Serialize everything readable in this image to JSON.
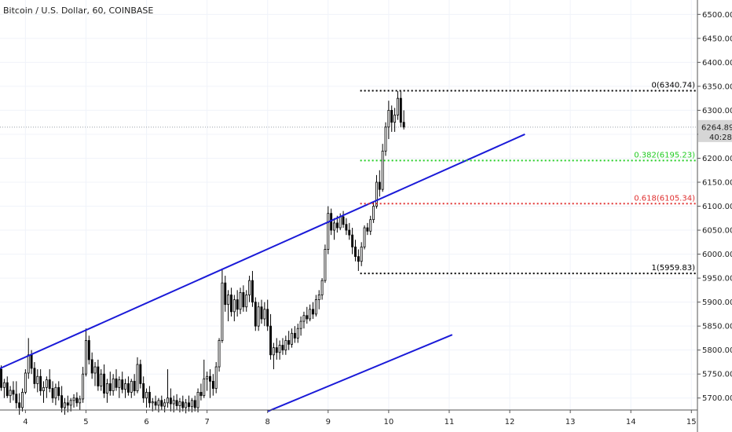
{
  "header": {
    "title": "Bitcoin / U.S. Dollar, 60, COINBASE"
  },
  "price_axis": {
    "labels": [
      "6500.00",
      "6450.00",
      "6400.00",
      "6350.00",
      "6300.00",
      "6250.00",
      "6200.00",
      "6150.00",
      "6100.00",
      "6050.00",
      "6000.00",
      "5950.00",
      "5900.00",
      "5850.00",
      "5800.00",
      "5750.00",
      "5700.00"
    ],
    "last_price": "6264.89",
    "countdown": "40:28",
    "last_price_bg": "#d6d6d6"
  },
  "time_axis": {
    "labels": [
      "4",
      "5",
      "6",
      "7",
      "8",
      "9",
      "10",
      "11",
      "12",
      "13",
      "14",
      "15"
    ]
  },
  "fib_levels": [
    {
      "label": "0(6340.74)",
      "value": 6340.74,
      "color": "#000000"
    },
    {
      "label": "0.382(6195.23)",
      "value": 6195.23,
      "color": "#22cc22"
    },
    {
      "label": "0.618(6105.34)",
      "value": 6105.34,
      "color": "#e03030"
    },
    {
      "label": "1(5959.83)",
      "value": 5959.83,
      "color": "#000000"
    }
  ],
  "chart_data": {
    "type": "candlestick",
    "title": "Bitcoin / U.S. Dollar, 60, COINBASE",
    "x_ticks": [
      4,
      5,
      6,
      7,
      8,
      9,
      10,
      11,
      12,
      13,
      14,
      15
    ],
    "y_ticks": [
      5700,
      5750,
      5800,
      5850,
      5900,
      5950,
      6000,
      6050,
      6100,
      6150,
      6200,
      6250,
      6300,
      6350,
      6400,
      6450,
      6500
    ],
    "ylim": [
      5675,
      6530
    ],
    "xlim": [
      3.58,
      15.1
    ],
    "last_price": 6264.89,
    "trendlines": [
      {
        "color": "#1a1ad8",
        "points": [
          [
            3.55,
            5760
          ],
          [
            12.25,
            6250
          ]
        ]
      },
      {
        "color": "#1a1ad8",
        "points": [
          [
            8.0,
            5672
          ],
          [
            11.05,
            5832
          ]
        ]
      }
    ],
    "fibonacci": [
      {
        "ratio": 0,
        "value": 6340.74
      },
      {
        "ratio": 0.382,
        "value": 6195.23
      },
      {
        "ratio": 0.618,
        "value": 6105.34
      },
      {
        "ratio": 1,
        "value": 5959.83
      }
    ],
    "fib_range": [
      9.53,
      15.1
    ],
    "candles": [
      [
        3.6,
        5760,
        5768,
        5715,
        5722
      ],
      [
        3.65,
        5722,
        5740,
        5700,
        5732
      ],
      [
        3.7,
        5732,
        5745,
        5700,
        5705
      ],
      [
        3.75,
        5705,
        5725,
        5690,
        5716
      ],
      [
        3.8,
        5716,
        5735,
        5695,
        5708
      ],
      [
        3.85,
        5708,
        5735,
        5678,
        5690
      ],
      [
        3.9,
        5690,
        5710,
        5665,
        5680
      ],
      [
        3.95,
        5680,
        5720,
        5672,
        5712
      ],
      [
        4.0,
        5712,
        5760,
        5708,
        5752
      ],
      [
        4.05,
        5752,
        5825,
        5740,
        5790
      ],
      [
        4.1,
        5790,
        5800,
        5750,
        5762
      ],
      [
        4.15,
        5762,
        5775,
        5720,
        5730
      ],
      [
        4.2,
        5730,
        5760,
        5712,
        5745
      ],
      [
        4.25,
        5745,
        5760,
        5705,
        5715
      ],
      [
        4.3,
        5715,
        5735,
        5690,
        5722
      ],
      [
        4.35,
        5722,
        5745,
        5700,
        5738
      ],
      [
        4.4,
        5738,
        5760,
        5712,
        5720
      ],
      [
        4.45,
        5720,
        5735,
        5690,
        5700
      ],
      [
        4.5,
        5700,
        5730,
        5685,
        5722
      ],
      [
        4.55,
        5722,
        5735,
        5695,
        5705
      ],
      [
        4.6,
        5705,
        5725,
        5670,
        5680
      ],
      [
        4.65,
        5680,
        5700,
        5665,
        5690
      ],
      [
        4.7,
        5690,
        5705,
        5670,
        5685
      ],
      [
        4.75,
        5685,
        5700,
        5672,
        5695
      ],
      [
        4.8,
        5695,
        5708,
        5680,
        5700
      ],
      [
        4.85,
        5700,
        5712,
        5682,
        5690
      ],
      [
        4.9,
        5690,
        5705,
        5675,
        5698
      ],
      [
        4.95,
        5698,
        5765,
        5690,
        5750
      ],
      [
        5.0,
        5750,
        5845,
        5745,
        5820
      ],
      [
        5.05,
        5820,
        5830,
        5770,
        5780
      ],
      [
        5.1,
        5780,
        5795,
        5740,
        5752
      ],
      [
        5.15,
        5752,
        5775,
        5725,
        5765
      ],
      [
        5.2,
        5765,
        5780,
        5715,
        5725
      ],
      [
        5.25,
        5725,
        5760,
        5715,
        5750
      ],
      [
        5.3,
        5750,
        5770,
        5700,
        5710
      ],
      [
        5.35,
        5710,
        5740,
        5690,
        5730
      ],
      [
        5.4,
        5730,
        5755,
        5705,
        5715
      ],
      [
        5.45,
        5715,
        5750,
        5705,
        5740
      ],
      [
        5.5,
        5740,
        5760,
        5715,
        5722
      ],
      [
        5.55,
        5722,
        5745,
        5700,
        5738
      ],
      [
        5.6,
        5738,
        5755,
        5710,
        5718
      ],
      [
        5.65,
        5718,
        5740,
        5700,
        5730
      ],
      [
        5.7,
        5730,
        5745,
        5705,
        5712
      ],
      [
        5.75,
        5712,
        5740,
        5700,
        5735
      ],
      [
        5.8,
        5735,
        5750,
        5705,
        5715
      ],
      [
        5.85,
        5715,
        5785,
        5710,
        5770
      ],
      [
        5.9,
        5770,
        5780,
        5720,
        5730
      ],
      [
        5.95,
        5730,
        5745,
        5690,
        5700
      ],
      [
        6.0,
        5700,
        5720,
        5680,
        5712
      ],
      [
        6.05,
        5712,
        5725,
        5680,
        5690
      ],
      [
        6.1,
        5690,
        5700,
        5672,
        5692
      ],
      [
        6.15,
        5692,
        5705,
        5675,
        5685
      ],
      [
        6.2,
        5685,
        5700,
        5670,
        5695
      ],
      [
        6.25,
        5695,
        5705,
        5675,
        5683
      ],
      [
        6.3,
        5683,
        5698,
        5670,
        5690
      ],
      [
        6.35,
        5690,
        5760,
        5680,
        5700
      ],
      [
        6.4,
        5700,
        5720,
        5672,
        5688
      ],
      [
        6.45,
        5688,
        5705,
        5670,
        5695
      ],
      [
        6.5,
        5695,
        5708,
        5675,
        5684
      ],
      [
        6.55,
        5684,
        5700,
        5670,
        5692
      ],
      [
        6.6,
        5692,
        5705,
        5672,
        5680
      ],
      [
        6.65,
        5680,
        5698,
        5668,
        5690
      ],
      [
        6.7,
        5690,
        5705,
        5672,
        5682
      ],
      [
        6.75,
        5682,
        5700,
        5670,
        5695
      ],
      [
        6.8,
        5695,
        5705,
        5672,
        5680
      ],
      [
        6.85,
        5680,
        5720,
        5670,
        5712
      ],
      [
        6.9,
        5712,
        5730,
        5695,
        5705
      ],
      [
        6.95,
        5705,
        5780,
        5700,
        5740
      ],
      [
        7.0,
        5740,
        5755,
        5715,
        5745
      ],
      [
        7.05,
        5745,
        5760,
        5700,
        5735
      ],
      [
        7.1,
        5735,
        5750,
        5705,
        5720
      ],
      [
        7.15,
        5720,
        5775,
        5710,
        5765
      ],
      [
        7.2,
        5765,
        5825,
        5755,
        5820
      ],
      [
        7.25,
        5820,
        5970,
        5815,
        5940
      ],
      [
        7.3,
        5940,
        5955,
        5880,
        5895
      ],
      [
        7.35,
        5895,
        5925,
        5860,
        5915
      ],
      [
        7.4,
        5915,
        5930,
        5870,
        5880
      ],
      [
        7.45,
        5880,
        5915,
        5860,
        5905
      ],
      [
        7.5,
        5905,
        5925,
        5870,
        5885
      ],
      [
        7.55,
        5885,
        5930,
        5875,
        5920
      ],
      [
        7.6,
        5920,
        5935,
        5880,
        5890
      ],
      [
        7.65,
        5890,
        5925,
        5880,
        5915
      ],
      [
        7.7,
        5915,
        5955,
        5900,
        5945
      ],
      [
        7.75,
        5945,
        5965,
        5890,
        5900
      ],
      [
        7.8,
        5900,
        5910,
        5840,
        5850
      ],
      [
        7.85,
        5850,
        5900,
        5840,
        5890
      ],
      [
        7.9,
        5890,
        5905,
        5855,
        5865
      ],
      [
        7.95,
        5865,
        5900,
        5850,
        5885
      ],
      [
        8.0,
        5885,
        5905,
        5840,
        5850
      ],
      [
        8.05,
        5850,
        5875,
        5780,
        5790
      ],
      [
        8.1,
        5790,
        5815,
        5760,
        5805
      ],
      [
        8.15,
        5805,
        5825,
        5780,
        5795
      ],
      [
        8.2,
        5795,
        5820,
        5780,
        5810
      ],
      [
        8.25,
        5810,
        5825,
        5790,
        5800
      ],
      [
        8.3,
        5800,
        5830,
        5790,
        5820
      ],
      [
        8.35,
        5820,
        5840,
        5800,
        5812
      ],
      [
        8.4,
        5812,
        5845,
        5805,
        5835
      ],
      [
        8.45,
        5835,
        5850,
        5815,
        5825
      ],
      [
        8.5,
        5825,
        5855,
        5815,
        5845
      ],
      [
        8.55,
        5845,
        5870,
        5830,
        5860
      ],
      [
        8.6,
        5860,
        5880,
        5845,
        5872
      ],
      [
        8.65,
        5872,
        5890,
        5855,
        5865
      ],
      [
        8.7,
        5865,
        5895,
        5860,
        5885
      ],
      [
        8.75,
        5885,
        5900,
        5865,
        5875
      ],
      [
        8.8,
        5875,
        5915,
        5870,
        5905
      ],
      [
        8.85,
        5905,
        5925,
        5885,
        5915
      ],
      [
        8.9,
        5915,
        5950,
        5905,
        5945
      ],
      [
        8.95,
        5945,
        6020,
        5940,
        6010
      ],
      [
        9.0,
        6010,
        6100,
        6000,
        6085
      ],
      [
        9.05,
        6085,
        6095,
        6040,
        6050
      ],
      [
        9.1,
        6050,
        6075,
        6030,
        6065
      ],
      [
        9.15,
        6065,
        6080,
        6045,
        6055
      ],
      [
        9.2,
        6055,
        6085,
        6050,
        6078
      ],
      [
        9.25,
        6078,
        6090,
        6055,
        6062
      ],
      [
        9.3,
        6062,
        6075,
        6040,
        6050
      ],
      [
        9.35,
        6050,
        6065,
        6030,
        6040
      ],
      [
        9.4,
        6040,
        6055,
        6000,
        6015
      ],
      [
        9.45,
        6015,
        6030,
        5985,
        5995
      ],
      [
        9.5,
        5995,
        6010,
        5965,
        5985
      ],
      [
        9.55,
        5985,
        6025,
        5975,
        6015
      ],
      [
        9.6,
        6015,
        6060,
        6010,
        6055
      ],
      [
        9.65,
        6055,
        6065,
        6040,
        6048
      ],
      [
        9.7,
        6048,
        6080,
        6040,
        6072
      ],
      [
        9.75,
        6072,
        6110,
        6065,
        6100
      ],
      [
        9.8,
        6100,
        6165,
        6095,
        6150
      ],
      [
        9.85,
        6150,
        6175,
        6120,
        6135
      ],
      [
        9.9,
        6135,
        6230,
        6130,
        6215
      ],
      [
        9.95,
        6215,
        6275,
        6205,
        6265
      ],
      [
        10.0,
        6265,
        6320,
        6240,
        6300
      ],
      [
        10.05,
        6300,
        6310,
        6255,
        6275
      ],
      [
        10.1,
        6275,
        6305,
        6255,
        6290
      ],
      [
        10.15,
        6290,
        6340,
        6280,
        6325
      ],
      [
        10.2,
        6325,
        6340,
        6265,
        6275
      ],
      [
        10.25,
        6275,
        6300,
        6260,
        6265
      ]
    ]
  }
}
